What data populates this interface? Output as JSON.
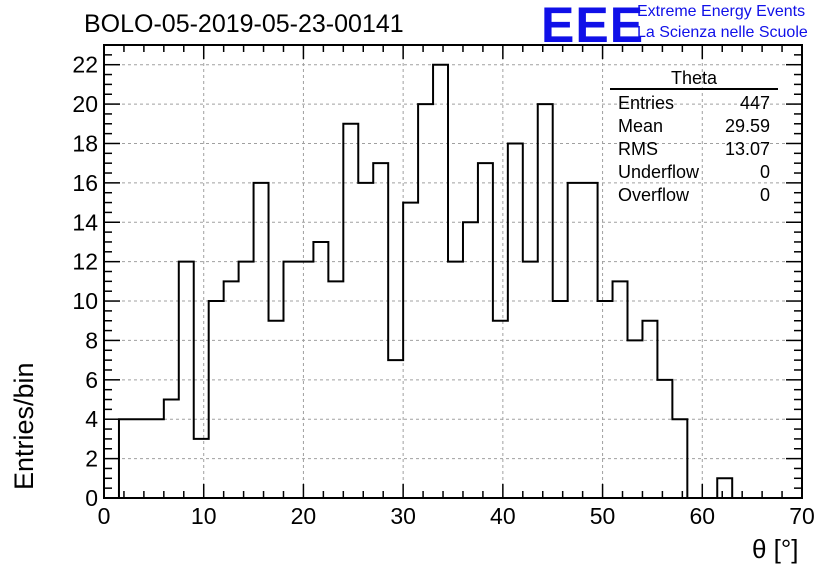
{
  "header": {
    "title": "BOLO-05-2019-05-23-00141",
    "logo_text": "EEE",
    "brand_line1": "Extreme Energy Events",
    "brand_line2": "La Scienza nelle Scuole",
    "logo_color": "#1010e8"
  },
  "stats_box": {
    "name": "Theta",
    "rows": [
      {
        "label": "Entries",
        "value": "447"
      },
      {
        "label": "Mean",
        "value": "29.59"
      },
      {
        "label": "RMS",
        "value": "13.07"
      },
      {
        "label": "Underflow",
        "value": "0"
      },
      {
        "label": "Overflow",
        "value": "0"
      }
    ]
  },
  "chart_data": {
    "type": "histogram",
    "title": "BOLO-05-2019-05-23-00141",
    "xlabel": "θ [°]",
    "ylabel": "Entries/bin",
    "xlim": [
      0,
      70
    ],
    "ylim": [
      0,
      23
    ],
    "x_ticks": [
      0,
      10,
      20,
      30,
      40,
      50,
      60,
      70
    ],
    "y_ticks": [
      0,
      2,
      4,
      6,
      8,
      10,
      12,
      14,
      16,
      18,
      20,
      22
    ],
    "grid": true,
    "line_color": "#000000",
    "bin_width": 1.5,
    "bins_start": 1.5,
    "values": [
      4,
      4,
      4,
      5,
      12,
      3,
      10,
      11,
      12,
      16,
      9,
      12,
      12,
      13,
      11,
      19,
      16,
      17,
      7,
      15,
      20,
      22,
      12,
      14,
      17,
      9,
      18,
      12,
      20,
      10,
      16,
      16,
      10,
      11,
      8,
      9,
      6,
      4,
      0,
      0,
      1,
      0
    ]
  }
}
